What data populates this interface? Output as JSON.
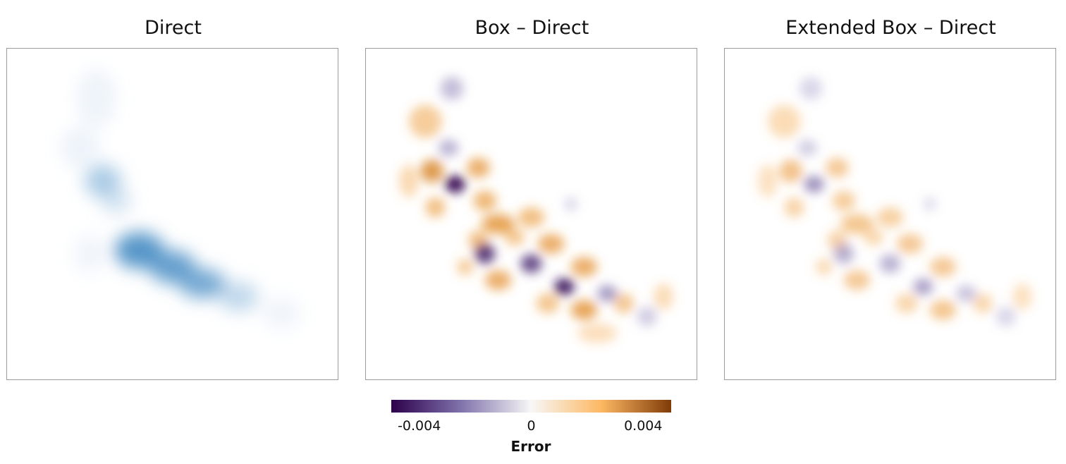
{
  "chart_data": [
    {
      "type": "heatmap",
      "title": "Direct",
      "colormap": "Blues",
      "colors": [
        "#ffffff",
        "#c6dbef",
        "#2b7bba"
      ],
      "blobs": [
        {
          "x": 0.27,
          "y": 0.15,
          "sx": 0.06,
          "sy": 0.09,
          "v": 0.12
        },
        {
          "x": 0.22,
          "y": 0.3,
          "sx": 0.06,
          "sy": 0.06,
          "v": 0.14
        },
        {
          "x": 0.29,
          "y": 0.4,
          "sx": 0.055,
          "sy": 0.05,
          "v": 0.55
        },
        {
          "x": 0.33,
          "y": 0.46,
          "sx": 0.045,
          "sy": 0.04,
          "v": 0.35
        },
        {
          "x": 0.4,
          "y": 0.61,
          "sx": 0.075,
          "sy": 0.055,
          "v": 0.85
        },
        {
          "x": 0.5,
          "y": 0.66,
          "sx": 0.07,
          "sy": 0.05,
          "v": 0.8
        },
        {
          "x": 0.59,
          "y": 0.71,
          "sx": 0.07,
          "sy": 0.045,
          "v": 0.75
        },
        {
          "x": 0.7,
          "y": 0.75,
          "sx": 0.06,
          "sy": 0.045,
          "v": 0.45
        },
        {
          "x": 0.83,
          "y": 0.8,
          "sx": 0.06,
          "sy": 0.05,
          "v": 0.1
        },
        {
          "x": 0.25,
          "y": 0.62,
          "sx": 0.05,
          "sy": 0.06,
          "v": 0.1
        }
      ]
    },
    {
      "type": "heatmap",
      "title": "Box – Direct",
      "colormap": "PuOr",
      "blobs": [
        {
          "x": 0.26,
          "y": 0.12,
          "sx": 0.035,
          "sy": 0.035,
          "v": -0.0012
        },
        {
          "x": 0.18,
          "y": 0.22,
          "sx": 0.05,
          "sy": 0.05,
          "v": 0.001
        },
        {
          "x": 0.25,
          "y": 0.3,
          "sx": 0.03,
          "sy": 0.025,
          "v": -0.0015
        },
        {
          "x": 0.2,
          "y": 0.37,
          "sx": 0.035,
          "sy": 0.035,
          "v": 0.0022
        },
        {
          "x": 0.34,
          "y": 0.36,
          "sx": 0.035,
          "sy": 0.03,
          "v": 0.0018
        },
        {
          "x": 0.27,
          "y": 0.41,
          "sx": 0.03,
          "sy": 0.025,
          "v": -0.0042
        },
        {
          "x": 0.21,
          "y": 0.48,
          "sx": 0.03,
          "sy": 0.03,
          "v": 0.0014
        },
        {
          "x": 0.36,
          "y": 0.46,
          "sx": 0.035,
          "sy": 0.03,
          "v": 0.0016
        },
        {
          "x": 0.4,
          "y": 0.53,
          "sx": 0.05,
          "sy": 0.03,
          "v": 0.002
        },
        {
          "x": 0.5,
          "y": 0.51,
          "sx": 0.04,
          "sy": 0.03,
          "v": 0.0014
        },
        {
          "x": 0.34,
          "y": 0.58,
          "sx": 0.03,
          "sy": 0.03,
          "v": 0.0014
        },
        {
          "x": 0.36,
          "y": 0.62,
          "sx": 0.03,
          "sy": 0.03,
          "v": -0.0032
        },
        {
          "x": 0.45,
          "y": 0.57,
          "sx": 0.03,
          "sy": 0.025,
          "v": 0.0012
        },
        {
          "x": 0.5,
          "y": 0.65,
          "sx": 0.032,
          "sy": 0.028,
          "v": -0.003
        },
        {
          "x": 0.56,
          "y": 0.59,
          "sx": 0.04,
          "sy": 0.03,
          "v": 0.0018
        },
        {
          "x": 0.3,
          "y": 0.66,
          "sx": 0.025,
          "sy": 0.025,
          "v": 0.001
        },
        {
          "x": 0.4,
          "y": 0.7,
          "sx": 0.04,
          "sy": 0.03,
          "v": 0.0018
        },
        {
          "x": 0.6,
          "y": 0.72,
          "sx": 0.03,
          "sy": 0.025,
          "v": -0.0036
        },
        {
          "x": 0.66,
          "y": 0.66,
          "sx": 0.04,
          "sy": 0.03,
          "v": 0.0018
        },
        {
          "x": 0.73,
          "y": 0.74,
          "sx": 0.03,
          "sy": 0.025,
          "v": -0.002
        },
        {
          "x": 0.55,
          "y": 0.77,
          "sx": 0.035,
          "sy": 0.03,
          "v": 0.0012
        },
        {
          "x": 0.66,
          "y": 0.79,
          "sx": 0.04,
          "sy": 0.03,
          "v": 0.002
        },
        {
          "x": 0.78,
          "y": 0.77,
          "sx": 0.03,
          "sy": 0.03,
          "v": 0.0012
        },
        {
          "x": 0.85,
          "y": 0.81,
          "sx": 0.03,
          "sy": 0.03,
          "v": -0.0008
        },
        {
          "x": 0.62,
          "y": 0.47,
          "sx": 0.02,
          "sy": 0.02,
          "v": -0.0006
        },
        {
          "x": 0.13,
          "y": 0.4,
          "sx": 0.03,
          "sy": 0.05,
          "v": 0.0006
        },
        {
          "x": 0.9,
          "y": 0.75,
          "sx": 0.03,
          "sy": 0.04,
          "v": 0.0005
        },
        {
          "x": 0.7,
          "y": 0.86,
          "sx": 0.06,
          "sy": 0.03,
          "v": 0.0004
        }
      ]
    },
    {
      "type": "heatmap",
      "title": "Extended Box – Direct",
      "colormap": "PuOr",
      "blobs": [
        {
          "x": 0.26,
          "y": 0.12,
          "sx": 0.035,
          "sy": 0.035,
          "v": -0.0005
        },
        {
          "x": 0.18,
          "y": 0.22,
          "sx": 0.05,
          "sy": 0.05,
          "v": 0.0005
        },
        {
          "x": 0.25,
          "y": 0.3,
          "sx": 0.03,
          "sy": 0.025,
          "v": -0.0008
        },
        {
          "x": 0.2,
          "y": 0.37,
          "sx": 0.035,
          "sy": 0.035,
          "v": 0.0013
        },
        {
          "x": 0.34,
          "y": 0.36,
          "sx": 0.035,
          "sy": 0.03,
          "v": 0.0011
        },
        {
          "x": 0.27,
          "y": 0.41,
          "sx": 0.03,
          "sy": 0.025,
          "v": -0.0022
        },
        {
          "x": 0.21,
          "y": 0.48,
          "sx": 0.03,
          "sy": 0.03,
          "v": 0.0008
        },
        {
          "x": 0.36,
          "y": 0.46,
          "sx": 0.035,
          "sy": 0.03,
          "v": 0.001
        },
        {
          "x": 0.4,
          "y": 0.53,
          "sx": 0.05,
          "sy": 0.03,
          "v": 0.0012
        },
        {
          "x": 0.5,
          "y": 0.51,
          "sx": 0.04,
          "sy": 0.03,
          "v": 0.0009
        },
        {
          "x": 0.34,
          "y": 0.58,
          "sx": 0.03,
          "sy": 0.03,
          "v": 0.0008
        },
        {
          "x": 0.36,
          "y": 0.62,
          "sx": 0.03,
          "sy": 0.03,
          "v": -0.0016
        },
        {
          "x": 0.45,
          "y": 0.57,
          "sx": 0.03,
          "sy": 0.025,
          "v": 0.0007
        },
        {
          "x": 0.5,
          "y": 0.65,
          "sx": 0.032,
          "sy": 0.028,
          "v": -0.0015
        },
        {
          "x": 0.56,
          "y": 0.59,
          "sx": 0.04,
          "sy": 0.03,
          "v": 0.0011
        },
        {
          "x": 0.3,
          "y": 0.66,
          "sx": 0.025,
          "sy": 0.025,
          "v": 0.0006
        },
        {
          "x": 0.4,
          "y": 0.7,
          "sx": 0.04,
          "sy": 0.03,
          "v": 0.0011
        },
        {
          "x": 0.6,
          "y": 0.72,
          "sx": 0.03,
          "sy": 0.025,
          "v": -0.0019
        },
        {
          "x": 0.66,
          "y": 0.66,
          "sx": 0.04,
          "sy": 0.03,
          "v": 0.0011
        },
        {
          "x": 0.73,
          "y": 0.74,
          "sx": 0.03,
          "sy": 0.025,
          "v": -0.0011
        },
        {
          "x": 0.55,
          "y": 0.77,
          "sx": 0.035,
          "sy": 0.03,
          "v": 0.0007
        },
        {
          "x": 0.66,
          "y": 0.79,
          "sx": 0.04,
          "sy": 0.03,
          "v": 0.0012
        },
        {
          "x": 0.78,
          "y": 0.77,
          "sx": 0.03,
          "sy": 0.03,
          "v": 0.0007
        },
        {
          "x": 0.85,
          "y": 0.81,
          "sx": 0.03,
          "sy": 0.03,
          "v": -0.0005
        },
        {
          "x": 0.62,
          "y": 0.47,
          "sx": 0.02,
          "sy": 0.02,
          "v": -0.0004
        },
        {
          "x": 0.13,
          "y": 0.4,
          "sx": 0.03,
          "sy": 0.05,
          "v": 0.0003
        },
        {
          "x": 0.9,
          "y": 0.75,
          "sx": 0.03,
          "sy": 0.04,
          "v": 0.0003
        }
      ]
    }
  ],
  "colorbar": {
    "label": "Error",
    "vmin": -0.005,
    "vmax": 0.005,
    "ticks": [
      {
        "value": -0.004,
        "label": "-0.004"
      },
      {
        "value": 0,
        "label": "0"
      },
      {
        "value": 0.004,
        "label": "0.004"
      }
    ],
    "colors": [
      "#2d004b",
      "#8073ac",
      "#f7f7f7",
      "#fdb863",
      "#7f3b08"
    ]
  }
}
